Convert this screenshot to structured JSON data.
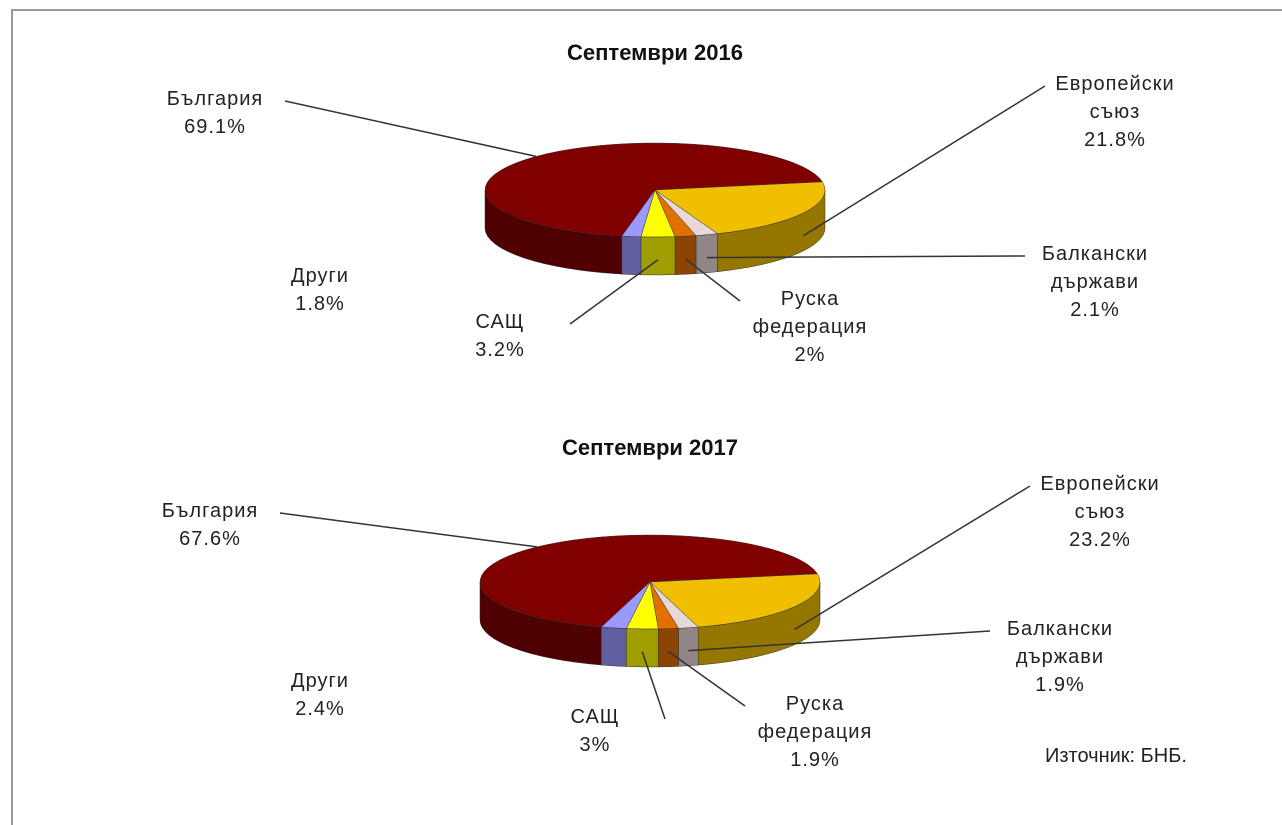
{
  "chart_data": [
    {
      "type": "pie",
      "title": "Септември 2016",
      "categories": [
        "България",
        "Европейски съюз",
        "Балкански държави",
        "Руска федерация",
        "САЩ",
        "Други"
      ],
      "values": [
        69.1,
        21.8,
        2.1,
        2,
        3.2,
        1.8
      ],
      "value_labels": [
        "69.1%",
        "21.8%",
        "2.1%",
        "2%",
        "3.2%",
        "1.8%"
      ],
      "colors": [
        "#800000",
        "#f0c000",
        "#e8d8d8",
        "#e07000",
        "#ffff00",
        "#9999ff"
      ]
    },
    {
      "type": "pie",
      "title": "Септември 2017",
      "categories": [
        "България",
        "Европейски съюз",
        "Балкански държави",
        "Руска федерация",
        "САЩ",
        "Други"
      ],
      "values": [
        67.6,
        23.2,
        1.9,
        1.9,
        3,
        2.4
      ],
      "value_labels": [
        "67.6%",
        "23.2%",
        "1.9%",
        "1.9%",
        "3%",
        "2.4%"
      ],
      "colors": [
        "#800000",
        "#f0c000",
        "#e8d8d8",
        "#e07000",
        "#ffff00",
        "#9999ff"
      ]
    }
  ],
  "source": "Източник: БНБ."
}
